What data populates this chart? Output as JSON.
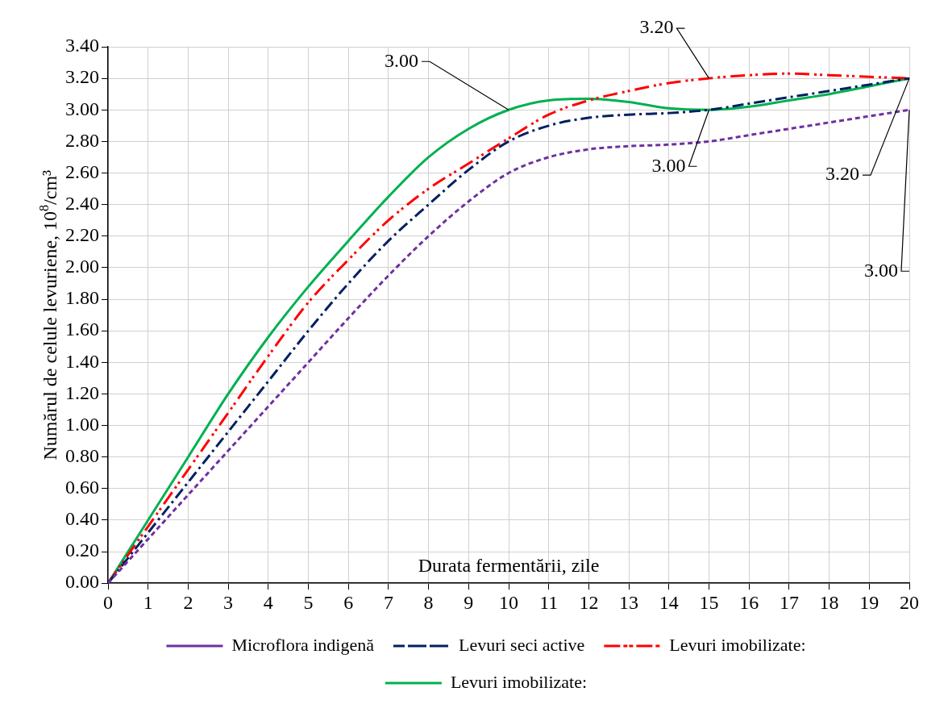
{
  "chart_data": {
    "type": "line",
    "xlabel": "Durata fermentării, zile",
    "ylabel": "Numărul de celule levuriene, 10$^{8}$/cm³",
    "x": [
      0,
      1,
      2,
      3,
      4,
      5,
      6,
      7,
      8,
      9,
      10,
      11,
      12,
      13,
      14,
      15,
      16,
      17,
      18,
      19,
      20
    ],
    "series": [
      {
        "name": "Microflora indigenă",
        "color": "#7030a0",
        "line_style": "dashed",
        "values": [
          0,
          0.28,
          0.56,
          0.84,
          1.12,
          1.4,
          1.68,
          1.95,
          2.2,
          2.42,
          2.6,
          2.7,
          2.75,
          2.77,
          2.78,
          2.8,
          2.84,
          2.88,
          2.92,
          2.96,
          3.0
        ]
      },
      {
        "name": "Levuri seci active",
        "color": "#002060",
        "line_style": "dashed",
        "values": [
          0,
          0.32,
          0.64,
          0.96,
          1.28,
          1.6,
          1.9,
          2.17,
          2.4,
          2.62,
          2.8,
          2.9,
          2.95,
          2.97,
          2.98,
          3.0,
          3.04,
          3.08,
          3.12,
          3.16,
          3.2
        ]
      },
      {
        "name": "Levuri imobilizate:",
        "color": "#ff0000",
        "line_style": "dashed",
        "values": [
          0,
          0.36,
          0.72,
          1.08,
          1.44,
          1.78,
          2.05,
          2.3,
          2.5,
          2.66,
          2.82,
          2.97,
          3.06,
          3.12,
          3.17,
          3.2,
          3.22,
          3.23,
          3.22,
          3.21,
          3.2
        ]
      },
      {
        "name": "Levuri imobilizate:",
        "color": "#00b050",
        "line_style": "solid",
        "values": [
          0,
          0.4,
          0.8,
          1.2,
          1.56,
          1.88,
          2.17,
          2.45,
          2.7,
          2.88,
          3.0,
          3.06,
          3.07,
          3.05,
          3.01,
          3.0,
          3.02,
          3.06,
          3.1,
          3.15,
          3.2
        ]
      }
    ],
    "xlim": [
      0,
      20
    ],
    "xticks": [
      0,
      1,
      2,
      3,
      4,
      5,
      6,
      7,
      8,
      9,
      10,
      11,
      12,
      13,
      14,
      15,
      16,
      17,
      18,
      19,
      20
    ],
    "ylim": [
      0,
      3.4
    ],
    "yticks": [
      {
        "value": 0,
        "label": "0.00"
      },
      {
        "value": 0.2,
        "label": "0.20"
      },
      {
        "value": 0.4,
        "label": "0.40"
      },
      {
        "value": 0.6,
        "label": "0.60"
      },
      {
        "value": 0.8,
        "label": "0.80"
      },
      {
        "value": 1,
        "label": "1.00"
      },
      {
        "value": 1.2,
        "label": "1.20"
      },
      {
        "value": 1.4,
        "label": "1.40"
      },
      {
        "value": 1.6,
        "label": "1.60"
      },
      {
        "value": 1.8,
        "label": "1.80"
      },
      {
        "value": 2,
        "label": "2.00"
      },
      {
        "value": 2.2,
        "label": "2.20"
      },
      {
        "value": 2.4,
        "label": "2.40"
      },
      {
        "value": 2.6,
        "label": "2.60"
      },
      {
        "value": 2.8,
        "label": "2.80"
      },
      {
        "value": 3,
        "label": "3.00"
      },
      {
        "value": 3.2,
        "label": "3.20"
      },
      {
        "value": 3.4,
        "label": "3.40"
      }
    ],
    "annotations": [
      {
        "text": "3.00",
        "x": 10,
        "y": 3.0
      },
      {
        "text": "3.20",
        "x": 15,
        "y": 3.2
      },
      {
        "text": "3.00",
        "x": 15,
        "y": 3.0
      },
      {
        "text": "3.20",
        "x": 20,
        "y": 3.2
      },
      {
        "text": "3.00",
        "x": 20,
        "y": 3.0
      }
    ],
    "grid": true,
    "legend": "bottom",
    "marker": "none"
  }
}
